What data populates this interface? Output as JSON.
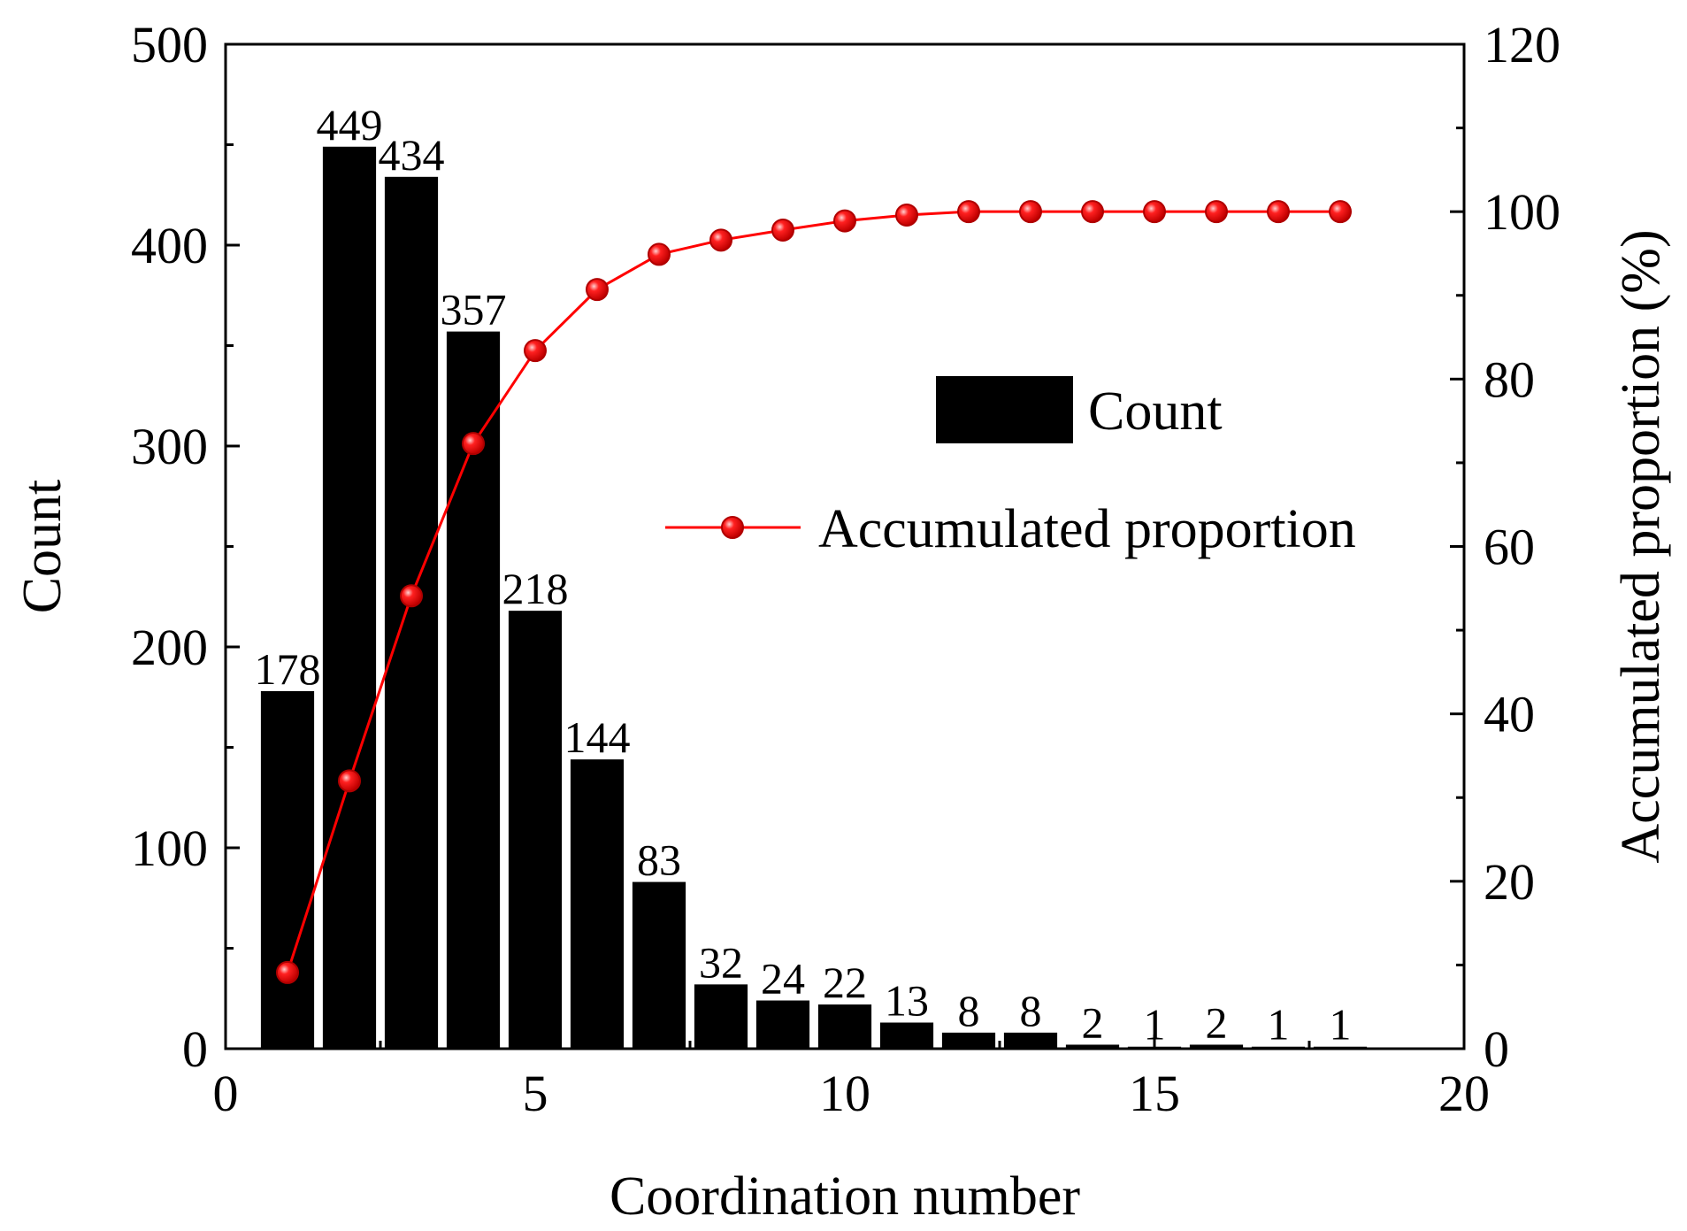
{
  "chart_data": {
    "type": "bar",
    "xlabel": "Coordination number",
    "ylabel": "Count",
    "y2label": "Accumulated proportion (%)",
    "xlim": [
      0,
      20
    ],
    "ylim": [
      0,
      500
    ],
    "y2lim": [
      0,
      120
    ],
    "xticks": [
      "0",
      "5",
      "10",
      "15",
      "20"
    ],
    "yticks": [
      "0",
      "100",
      "200",
      "300",
      "400",
      "500"
    ],
    "y2ticks": [
      "0",
      "20",
      "40",
      "60",
      "80",
      "100",
      "120"
    ],
    "grid": false,
    "legend_position": "center-right",
    "x": [
      1,
      2,
      3,
      4,
      5,
      6,
      7,
      8,
      9,
      10,
      11,
      12,
      13,
      14,
      15,
      16,
      17,
      18
    ],
    "series": [
      {
        "name": "Count",
        "type": "bar",
        "axis": "left",
        "color": "#000000",
        "values": [
          178,
          449,
          434,
          357,
          218,
          144,
          83,
          32,
          24,
          22,
          13,
          8,
          8,
          2,
          1,
          2,
          1,
          1
        ],
        "labels": [
          "178",
          "449",
          "434",
          "357",
          "218",
          "144",
          "83",
          "32",
          "24",
          "22",
          "13",
          "8",
          "8",
          "2",
          "1",
          "2",
          "1",
          "1"
        ]
      },
      {
        "name": "Accumulated proportion",
        "type": "line",
        "axis": "right",
        "color": "#ff0000",
        "values": [
          9.1,
          32.0,
          54.1,
          72.3,
          83.4,
          90.7,
          94.9,
          96.6,
          97.8,
          98.9,
          99.6,
          100.0,
          100.0,
          100.0,
          100.0,
          100.0,
          100.0,
          100.0
        ]
      }
    ]
  }
}
